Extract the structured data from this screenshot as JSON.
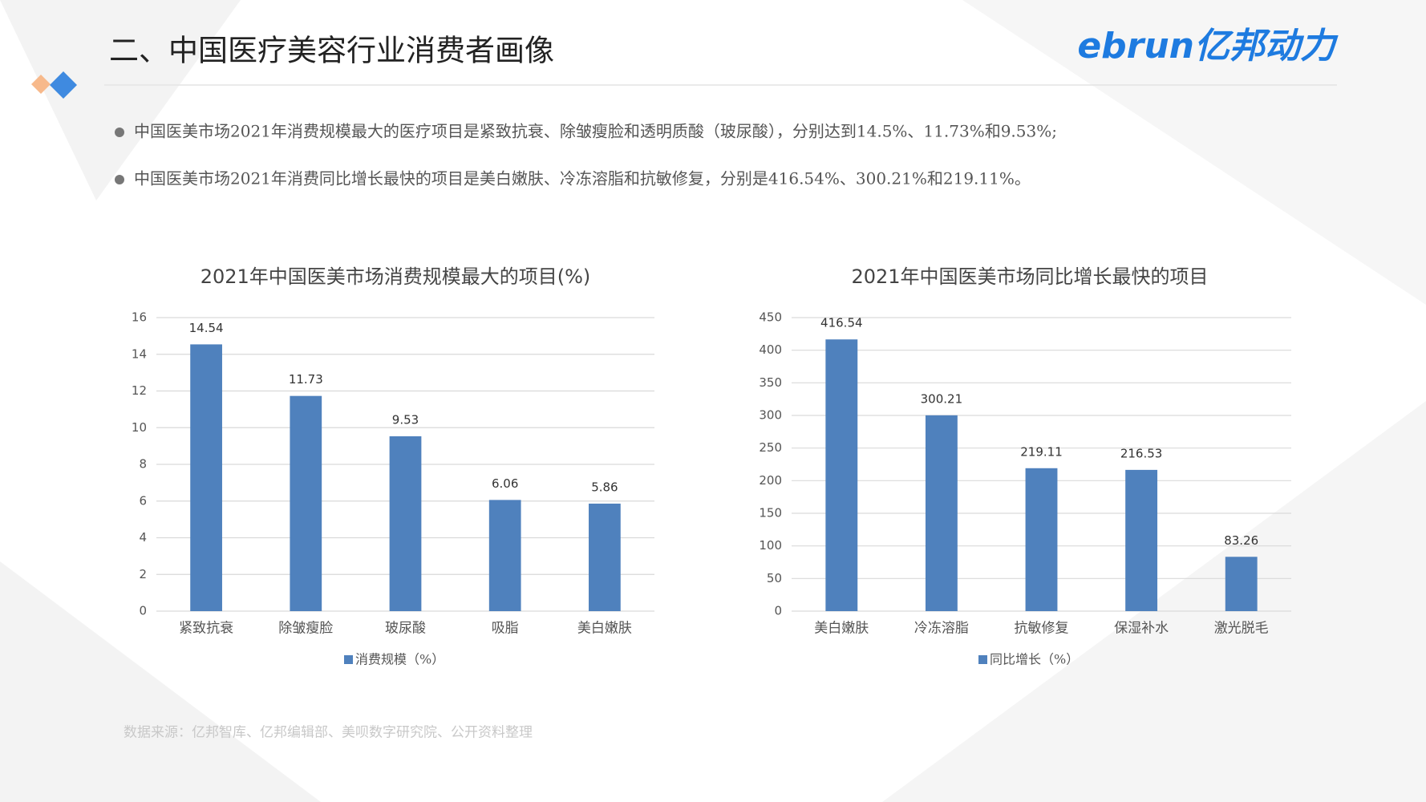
{
  "header": {
    "title": "二、中国医疗美容行业消费者画像",
    "logo": "ebrun亿邦动力"
  },
  "bullets": [
    "中国医美市场2021年消费规模最大的医疗项目是紧致抗衰、除皱瘦脸和透明质酸（玻尿酸），分别达到14.5%、11.73%和9.53%;",
    "中国医美市场2021年消费同比增长最快的项目是美白嫩肤、冷冻溶脂和抗敏修复，分别是416.54%、300.21%和219.11%。"
  ],
  "chart_data": [
    {
      "type": "bar",
      "title": "2021年中国医美市场消费规模最大的项目(%)",
      "categories": [
        "紧致抗衰",
        "除皱瘦脸",
        "玻尿酸",
        "吸脂",
        "美白嫩肤"
      ],
      "series": [
        {
          "name": "消费规模（%）",
          "color": "#4f81bd",
          "values": [
            14.54,
            11.73,
            9.53,
            6.06,
            5.86
          ]
        }
      ],
      "ylim": [
        0,
        16
      ],
      "yticks": [
        0,
        2,
        4,
        6,
        8,
        10,
        12,
        14,
        16
      ],
      "grid": true,
      "legend": "bottom"
    },
    {
      "type": "bar",
      "title": "2021年中国医美市场同比增长最快的项目",
      "categories": [
        "美白嫩肤",
        "冷冻溶脂",
        "抗敏修复",
        "保湿补水",
        "激光脱毛"
      ],
      "series": [
        {
          "name": "同比增长（%）",
          "color": "#4f81bd",
          "values": [
            416.54,
            300.21,
            219.11,
            216.53,
            83.26
          ]
        }
      ],
      "ylim": [
        0,
        450
      ],
      "yticks": [
        0,
        50,
        100,
        150,
        200,
        250,
        300,
        350,
        400,
        450
      ],
      "grid": true,
      "legend": "bottom"
    }
  ],
  "source": "数据来源：亿邦智库、亿邦编辑部、美呗数字研究院、公开资料整理"
}
